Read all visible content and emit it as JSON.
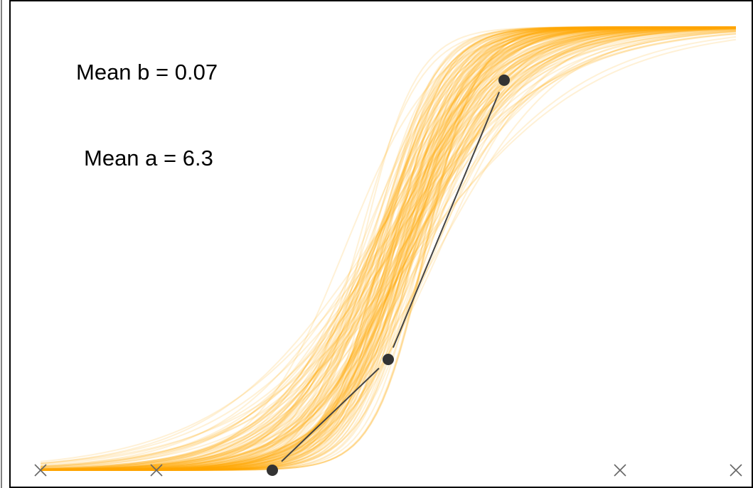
{
  "chart_data": {
    "type": "line",
    "title": "",
    "xlabel": "",
    "ylabel": "",
    "grid": false,
    "legend": "none",
    "xlim": [
      -3,
      3
    ],
    "ylim": [
      0,
      1
    ],
    "annotations": {
      "mean_b": "Mean b = 0.07",
      "mean_a": "Mean a = 6.3"
    },
    "curve_family": {
      "description_free_count": 160,
      "mean_a": 6.3,
      "mean_b": 0.07,
      "a_range": [
        2.5,
        10
      ],
      "b_range": [
        -0.6,
        0.45
      ],
      "color": "#FFA500"
    },
    "observed_points": {
      "x": [
        -1.0,
        0.0,
        1.0
      ],
      "y": [
        0.0,
        0.25,
        0.88
      ],
      "marker": "filled-circle",
      "color": "#333333"
    },
    "excluded_points": {
      "x": [
        -3.0,
        -2.0,
        2.0,
        3.0
      ],
      "y": [
        0.0,
        0.0,
        0.0,
        0.0
      ],
      "marker": "x",
      "color": "#666666"
    }
  }
}
